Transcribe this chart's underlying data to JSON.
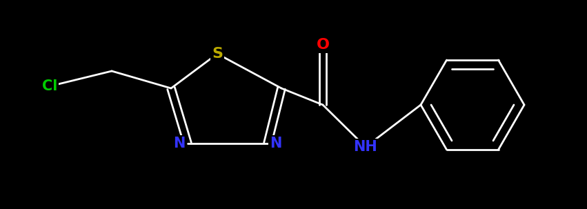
{
  "background_color": "#000000",
  "atom_colors": {
    "C": "#ffffff",
    "N": "#3333ff",
    "O": "#ff0000",
    "S": "#bbaa00",
    "Cl": "#00cc00",
    "H": "#ffffff"
  },
  "figsize": [
    8.51,
    3.03
  ],
  "dpi": 100,
  "bond_lw": 2.0,
  "font_size": 15
}
